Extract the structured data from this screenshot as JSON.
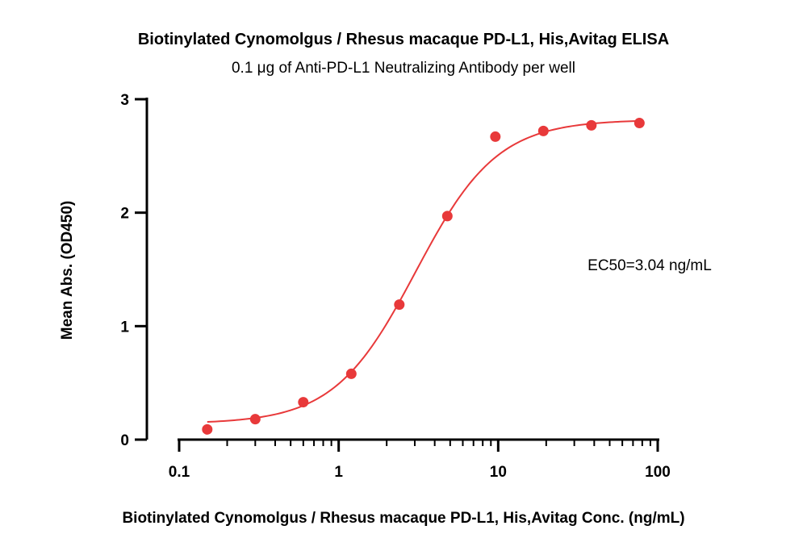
{
  "chart_data": {
    "type": "scatter",
    "title": "Biotinylated Cynomolgus / Rhesus macaque PD-L1, His,Avitag ELISA",
    "subtitle": "0.1 μg of Anti-PD-L1 Neutralizing Antibody per well",
    "xlabel": "Biotinylated Cynomolgus / Rhesus macaque PD-L1, His,Avitag Conc. (ng/mL)",
    "ylabel": "Mean Abs. (OD450)",
    "x_scale": "log",
    "xlim": [
      0.1,
      100
    ],
    "ylim": [
      0,
      3
    ],
    "x_ticks": [
      "0.1",
      "1",
      "10",
      "100"
    ],
    "y_ticks": [
      "0",
      "1",
      "2",
      "3"
    ],
    "grid": false,
    "annotation": "EC50=3.04 ng/mL",
    "colors": {
      "series": "#e8393a",
      "axis": "#000000"
    },
    "series": [
      {
        "x": [
          0.15,
          0.3,
          0.6,
          1.2,
          2.4,
          4.8,
          9.6,
          19.2,
          38.4,
          76.8
        ],
        "y": [
          0.09,
          0.18,
          0.33,
          0.58,
          1.19,
          1.97,
          2.67,
          2.72,
          2.77,
          2.79
        ]
      }
    ],
    "fit": {
      "model": "4PL",
      "bottom": 0.14,
      "top": 2.82,
      "ec50": 3.04,
      "hill": 1.7,
      "x_range": [
        0.15,
        76.8
      ]
    }
  }
}
